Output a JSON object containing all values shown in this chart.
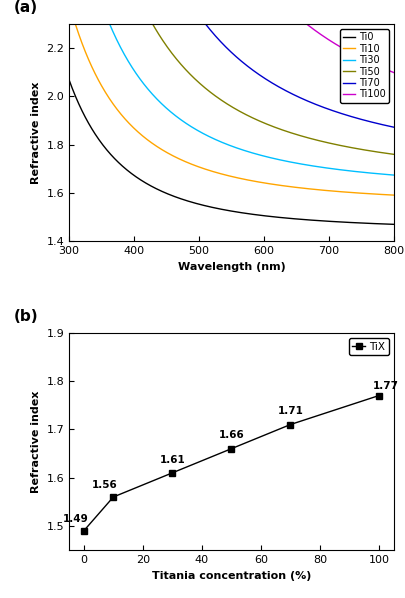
{
  "panel_a": {
    "xlabel": "Wavelength (nm)",
    "ylabel": "Refractive index",
    "xlim": [
      300,
      800
    ],
    "ylim": [
      1.4,
      2.3
    ],
    "yticks": [
      1.4,
      1.6,
      1.8,
      2.0,
      2.2
    ],
    "xticks": [
      300,
      400,
      500,
      600,
      700,
      800
    ],
    "series": [
      {
        "label": "Ti0",
        "color": "#000000",
        "n_inf": 1.442,
        "A": 0.012,
        "B": 0.004
      },
      {
        "label": "Ti10",
        "color": "#FFA500",
        "n_inf": 1.548,
        "A": 0.02,
        "B": 0.005
      },
      {
        "label": "Ti30",
        "color": "#00BFFF",
        "n_inf": 1.608,
        "A": 0.03,
        "B": 0.008
      },
      {
        "label": "Ti50",
        "color": "#808000",
        "n_inf": 1.645,
        "A": 0.055,
        "B": 0.012
      },
      {
        "label": "Ti70",
        "color": "#0000CD",
        "n_inf": 1.688,
        "A": 0.09,
        "B": 0.018
      },
      {
        "label": "Ti100",
        "color": "#CC00CC",
        "n_inf": 1.752,
        "A": 0.175,
        "B": 0.03
      }
    ]
  },
  "panel_b": {
    "xlabel": "Titania concentration (%)",
    "ylabel": "Refractive index",
    "xlim": [
      -5,
      105
    ],
    "ylim": [
      1.45,
      1.9
    ],
    "yticks": [
      1.5,
      1.6,
      1.7,
      1.8,
      1.9
    ],
    "xticks": [
      0,
      20,
      40,
      60,
      80,
      100
    ],
    "x": [
      0,
      10,
      30,
      50,
      70,
      100
    ],
    "y": [
      1.49,
      1.56,
      1.61,
      1.66,
      1.71,
      1.77
    ],
    "labels": [
      "1.49",
      "1.56",
      "1.61",
      "1.66",
      "1.71",
      "1.77"
    ],
    "legend_label": "TiX",
    "line_color": "#000000",
    "marker": "s",
    "marker_size": 4
  }
}
